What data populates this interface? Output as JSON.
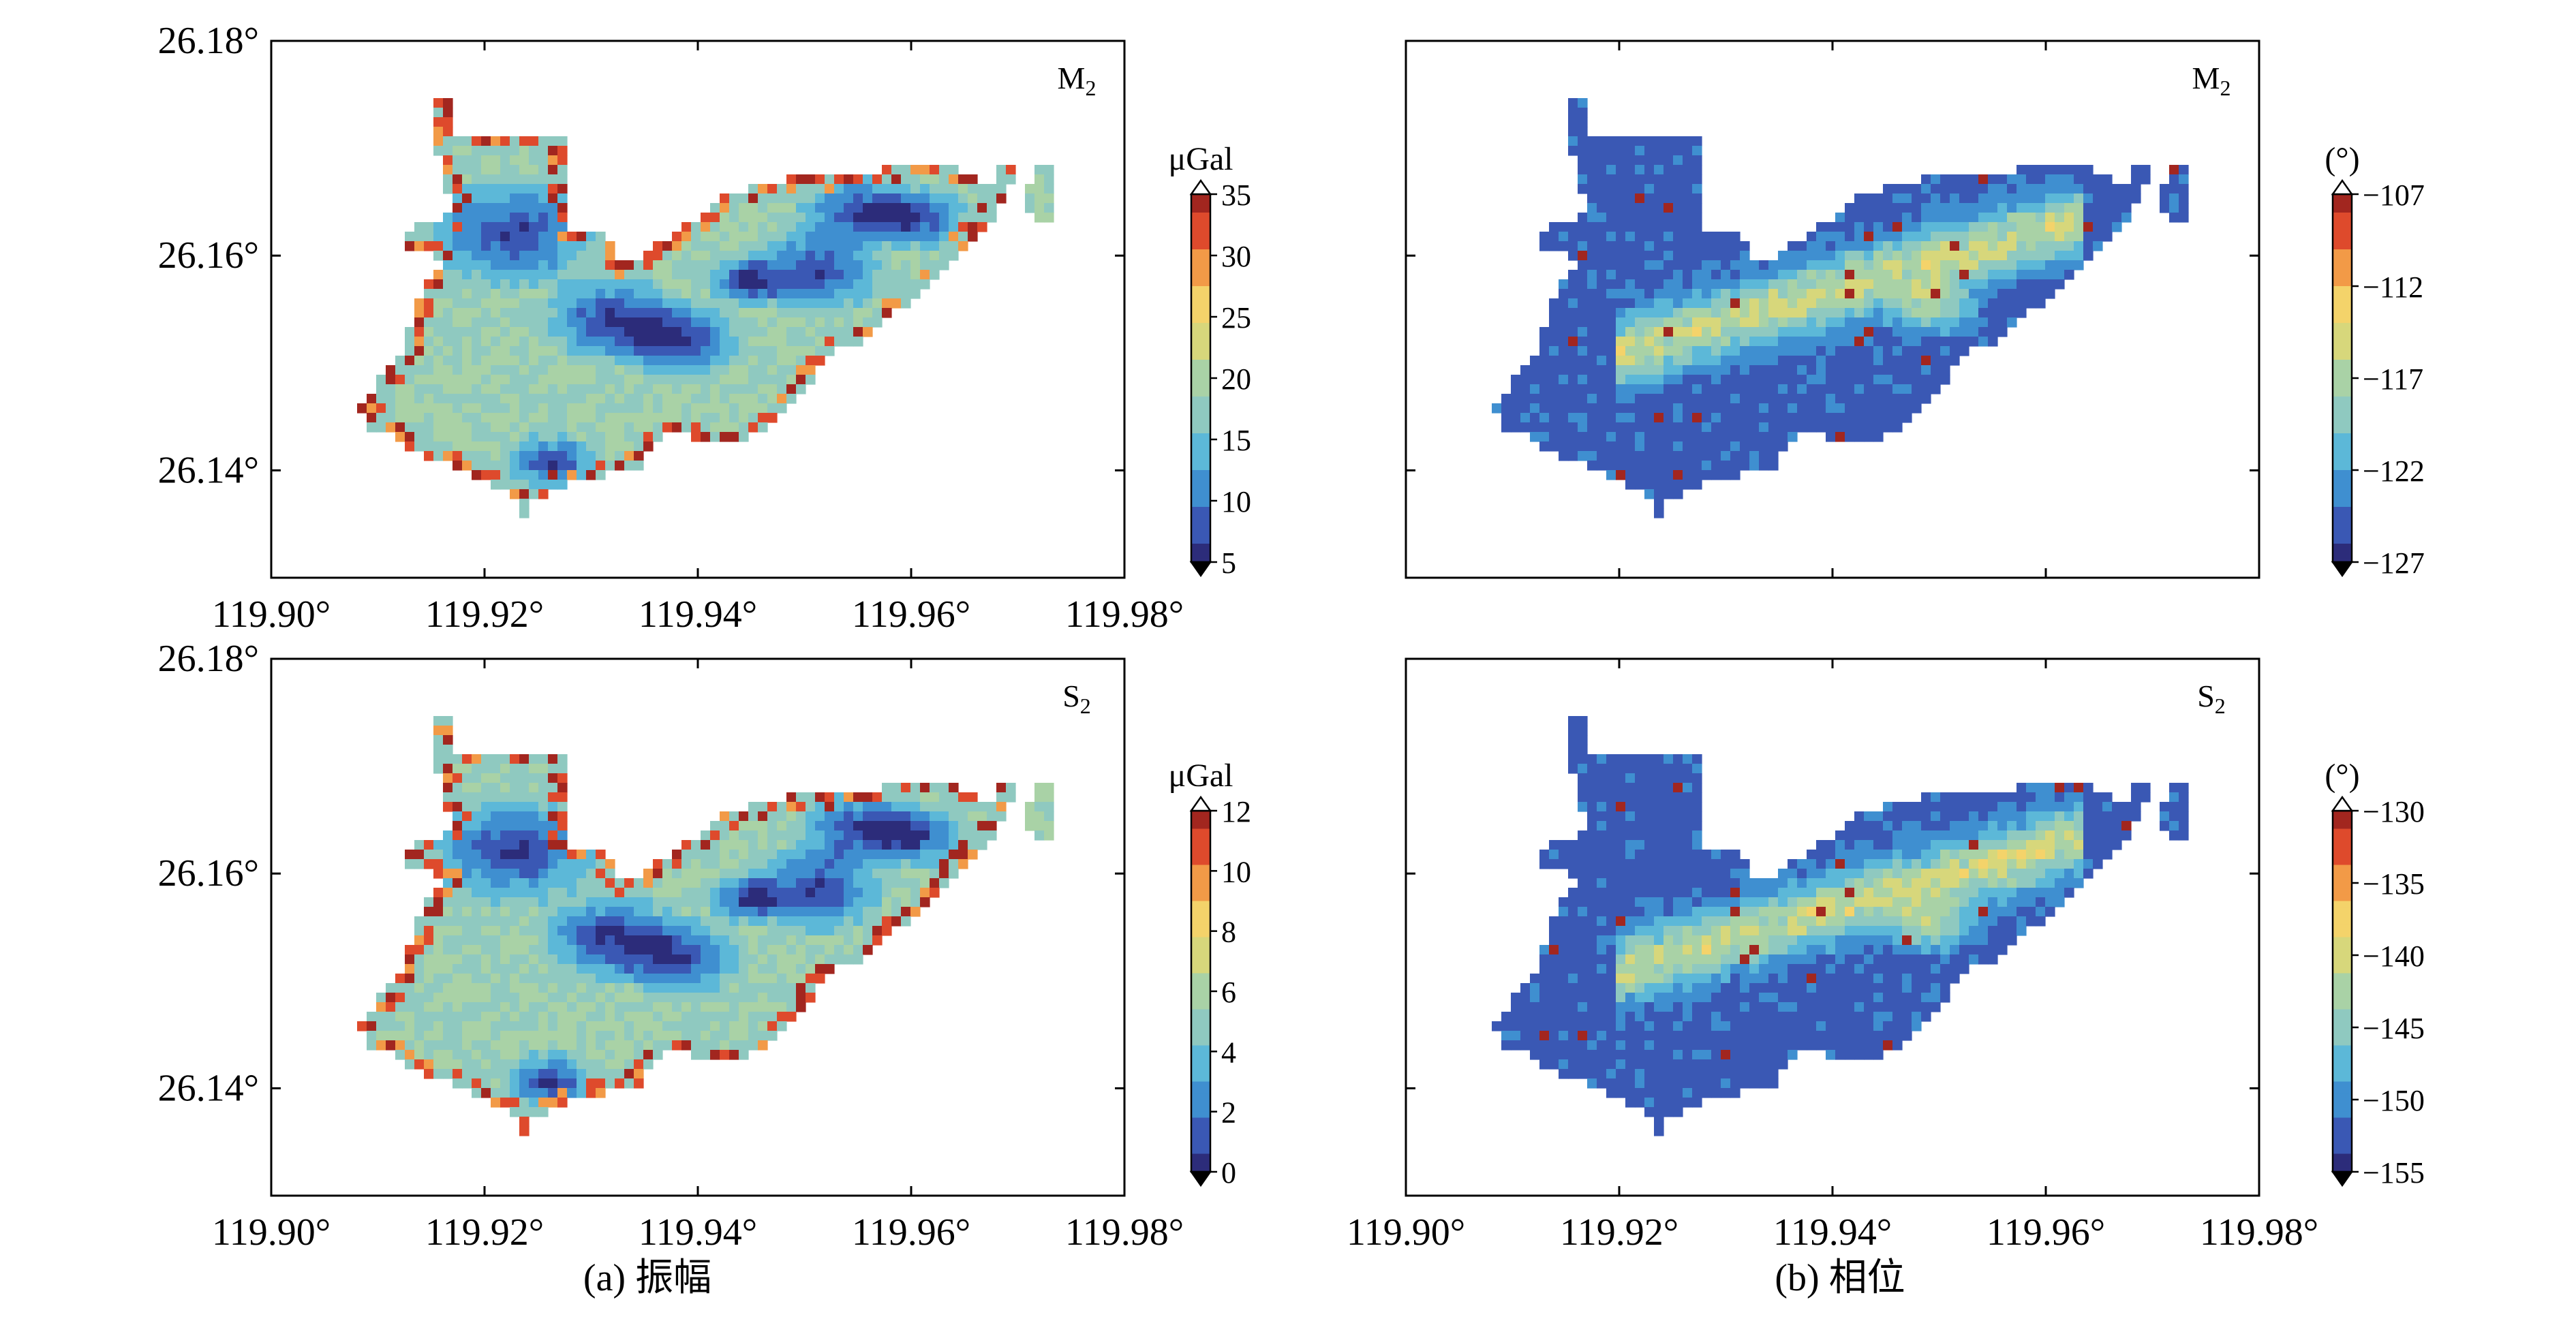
{
  "colors": {
    "colormap": [
      "#2c2c7a",
      "#3a58b4",
      "#3f8fd0",
      "#5cb8d8",
      "#8fc9c0",
      "#a9d2a6",
      "#d7d77b",
      "#f4d36a",
      "#f29a47",
      "#de4a2c",
      "#a2261f"
    ],
    "frame": "#000000"
  },
  "captions": {
    "a": "(a) 振幅",
    "b": "(b) 相位"
  },
  "chart_data": [
    {
      "type": "heatmap",
      "panel": "a-top",
      "label_main": "M",
      "label_sub": "2",
      "xlim": [
        119.9,
        119.98
      ],
      "ylim": [
        26.13,
        26.18
      ],
      "xticks": [
        "119.90°",
        "119.92°",
        "119.94°",
        "119.96°",
        "119.98°"
      ],
      "yticks": [
        "26.14°",
        "26.16°",
        "26.18°"
      ],
      "colorbar": {
        "title": "μGal",
        "range": [
          5,
          35
        ],
        "ticks": [
          "35",
          "30",
          "25",
          "20",
          "15",
          "10",
          "5"
        ]
      }
    },
    {
      "type": "heatmap",
      "panel": "b-top",
      "label_main": "M",
      "label_sub": "2",
      "xlim": [
        119.9,
        119.98
      ],
      "ylim": [
        26.13,
        26.18
      ],
      "colorbar": {
        "title": "(°)",
        "range": [
          -127,
          -107
        ],
        "ticks": [
          "−107",
          "−112",
          "−117",
          "−122",
          "−127"
        ]
      }
    },
    {
      "type": "heatmap",
      "panel": "a-bottom",
      "label_main": "S",
      "label_sub": "2",
      "xlim": [
        119.9,
        119.98
      ],
      "ylim": [
        26.13,
        26.18
      ],
      "xticks": [
        "119.90°",
        "119.92°",
        "119.94°",
        "119.96°",
        "119.98°"
      ],
      "yticks": [
        "26.14°",
        "26.16°",
        "26.18°"
      ],
      "colorbar": {
        "title": "μGal",
        "range": [
          0,
          12
        ],
        "ticks": [
          "12",
          "10",
          "8",
          "6",
          "4",
          "2",
          "0"
        ]
      }
    },
    {
      "type": "heatmap",
      "panel": "b-bottom",
      "label_main": "S",
      "label_sub": "2",
      "xlim": [
        119.9,
        119.98
      ],
      "ylim": [
        26.13,
        26.18
      ],
      "xticks": [
        "119.90°",
        "119.92°",
        "119.94°",
        "119.96°",
        "119.98°"
      ],
      "colorbar": {
        "title": "(°)",
        "range": [
          -155,
          -130
        ],
        "ticks": [
          "−130",
          "−135",
          "−140",
          "−145",
          "−150",
          "−155"
        ]
      }
    }
  ]
}
